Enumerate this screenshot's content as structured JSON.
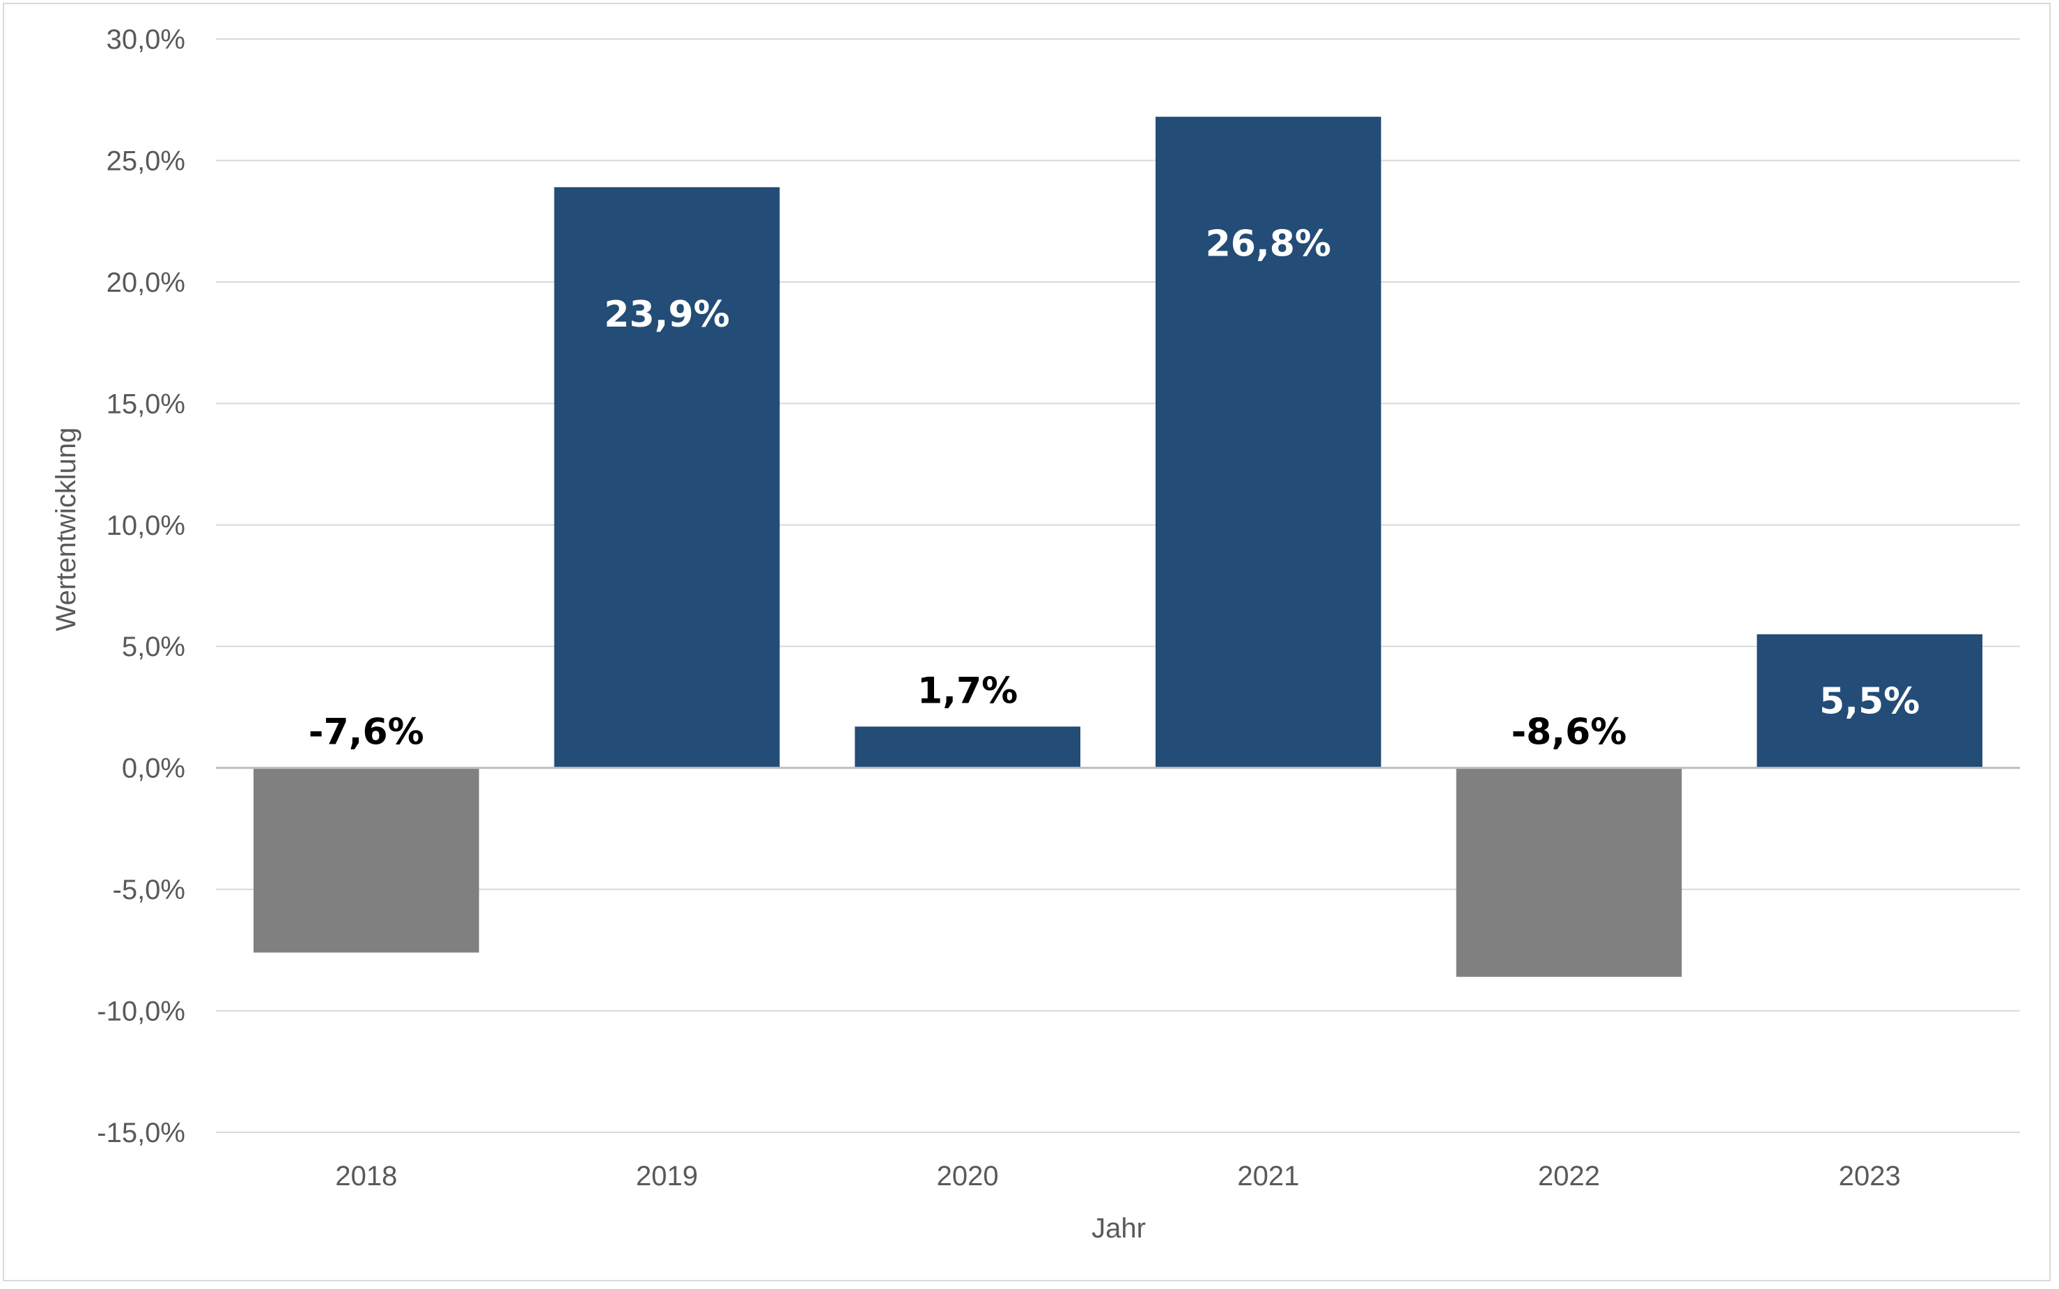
{
  "chart_data": {
    "type": "bar",
    "categories": [
      "2018",
      "2019",
      "2020",
      "2021",
      "2022",
      "2023"
    ],
    "values": [
      -7.6,
      23.9,
      1.7,
      26.8,
      -8.6,
      5.5
    ],
    "data_labels": [
      "-7,6%",
      "23,9%",
      "1,7%",
      "26,8%",
      "-8,6%",
      "5,5%"
    ],
    "title": "",
    "xlabel": "Jahr",
    "ylabel": "Wertentwicklung",
    "ylim": [
      -15,
      30
    ],
    "yticks": [
      30,
      25,
      20,
      15,
      10,
      5,
      0,
      -5,
      -10,
      -15
    ],
    "ytick_labels": [
      "30,0%",
      "25,0%",
      "20,0%",
      "15,0%",
      "10,0%",
      "5,0%",
      "0,0%",
      "-5,0%",
      "-10,0%",
      "-15,0%"
    ],
    "grid": true,
    "legend": "none",
    "colors": {
      "positive": "#234c77",
      "negative": "#808080",
      "gridline": "#d9d9d9",
      "zero_line": "#bfbfbf",
      "label_inside": "#ffffff",
      "label_outside": "#000000",
      "tick_text": "#595959"
    }
  }
}
